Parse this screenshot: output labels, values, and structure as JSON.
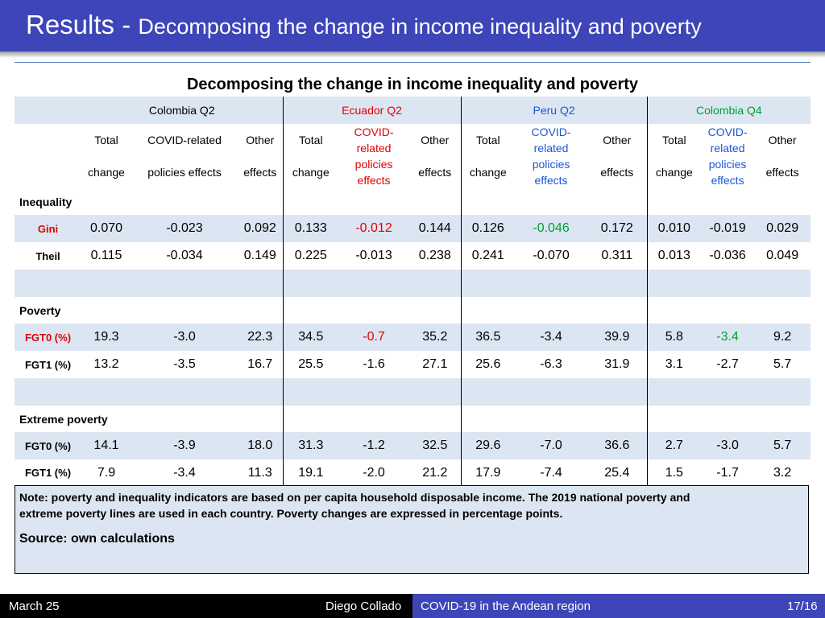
{
  "slide": {
    "title_main": "Results - ",
    "title_sub": "Decomposing the change in income inequality and poverty",
    "table_caption": "Decomposing the change in income inequality and poverty"
  },
  "columns": {
    "groups": [
      "Colombia Q2",
      "Ecuador Q2",
      "Peru Q2",
      "Colombia Q4"
    ],
    "group_colors": [
      "#000000",
      "#e00000",
      "#1a56d6",
      "#00a030"
    ],
    "total_line1": "Total",
    "total_line2": "change",
    "covid_wide_line1": "COVID-related",
    "covid_wide_line2": "policies effects",
    "covid_stack": "COVID-\nrelated\npolicies\neffects",
    "other_line1": "Other",
    "other_line2": "effects"
  },
  "sections": {
    "inequality": "Inequality",
    "poverty": "Poverty",
    "extreme": "Extreme poverty"
  },
  "rows": {
    "gini": {
      "label": "Gini",
      "values": [
        "0.070",
        "-0.023",
        "0.092",
        "0.133",
        "-0.012",
        "0.144",
        "0.126",
        "-0.046",
        "0.172",
        "0.010",
        "-0.019",
        "0.029"
      ]
    },
    "theil": {
      "label": "Theil",
      "values": [
        "0.115",
        "-0.034",
        "0.149",
        "0.225",
        "-0.013",
        "0.238",
        "0.241",
        "-0.070",
        "0.311",
        "0.013",
        "-0.036",
        "0.049"
      ]
    },
    "fgt0": {
      "label": "FGT0 (%)",
      "values": [
        "19.3",
        "-3.0",
        "22.3",
        "34.5",
        "-0.7",
        "35.2",
        "36.5",
        "-3.4",
        "39.9",
        "5.8",
        "-3.4",
        "9.2"
      ]
    },
    "fgt1": {
      "label": "FGT1 (%)",
      "values": [
        "13.2",
        "-3.5",
        "16.7",
        "25.5",
        "-1.6",
        "27.1",
        "25.6",
        "-6.3",
        "31.9",
        "3.1",
        "-2.7",
        "5.7"
      ]
    },
    "efgt0": {
      "label": "FGT0 (%)",
      "values": [
        "14.1",
        "-3.9",
        "18.0",
        "31.3",
        "-1.2",
        "32.5",
        "29.6",
        "-7.0",
        "36.6",
        "2.7",
        "-3.0",
        "5.7"
      ]
    },
    "efgt1": {
      "label": "FGT1 (%)",
      "values": [
        "7.9",
        "-3.4",
        "11.3",
        "19.1",
        "-2.0",
        "21.2",
        "17.9",
        "-7.4",
        "25.4",
        "1.5",
        "-1.7",
        "3.2"
      ]
    }
  },
  "note": {
    "line1": "Note: poverty and inequality indicators are based on per capita household disposable income. The 2019 national poverty and",
    "line2": "extreme poverty lines are used in each country. Poverty changes are expressed in percentage points.",
    "source": "Source: own calculations"
  },
  "footer": {
    "date": "March 25",
    "author": "Diego Collado",
    "talk": "COVID-19 in the Andean region",
    "page": "17/16"
  }
}
